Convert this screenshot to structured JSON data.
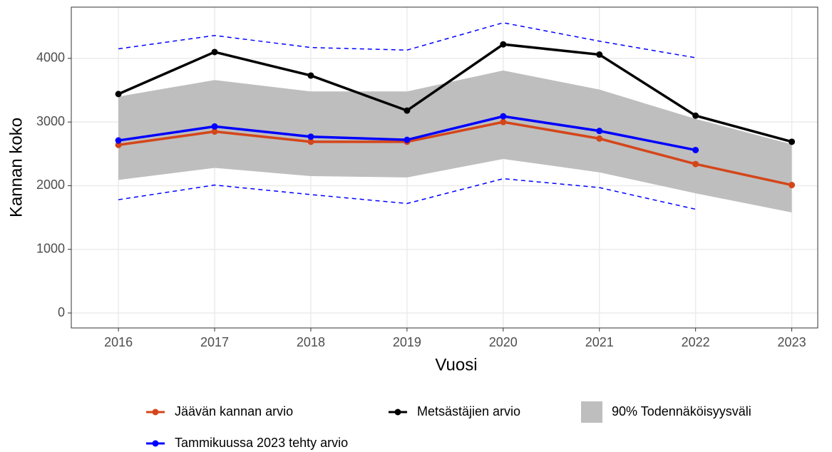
{
  "chart_data": {
    "type": "line",
    "x_label": "Vuosi",
    "y_label": "Kannan koko",
    "x": [
      2016,
      2017,
      2018,
      2019,
      2020,
      2021,
      2022,
      2023
    ],
    "series": [
      {
        "name": "Jäävän kannan arvio",
        "color": "#d4461a",
        "values": [
          2640,
          2850,
          2690,
          2690,
          3000,
          2740,
          2340,
          2010
        ]
      },
      {
        "name": "Metsästäjien arvio",
        "color": "#000000",
        "values": [
          3440,
          4100,
          3730,
          3180,
          4220,
          4060,
          3100,
          2690
        ]
      },
      {
        "name": "Tammikuussa 2023 tehty arvio",
        "color": "#0000ff",
        "values": [
          2710,
          2930,
          2770,
          2720,
          3090,
          2860,
          2560,
          null
        ]
      }
    ],
    "band": {
      "name": "90% Todennäköisyysväli",
      "color": "#bebebe",
      "lower": [
        2090,
        2280,
        2150,
        2130,
        2420,
        2210,
        1880,
        1580
      ],
      "upper": [
        3400,
        3660,
        3480,
        3480,
        3810,
        3510,
        3050,
        2650
      ]
    },
    "interval_lines": {
      "color": "#0000ff",
      "upper": [
        4150,
        4360,
        4170,
        4130,
        4560,
        4270,
        4010,
        null
      ],
      "lower": [
        1780,
        2010,
        1860,
        1720,
        2110,
        1970,
        1630,
        null
      ]
    },
    "xlim": [
      2015.51,
      2023.27
    ],
    "ylim": [
      -235,
      4805
    ],
    "xticks": [
      2016,
      2017,
      2018,
      2019,
      2020,
      2021,
      2022,
      2023
    ],
    "yticks": [
      0,
      1000,
      2000,
      3000,
      4000
    ],
    "grid": true
  }
}
